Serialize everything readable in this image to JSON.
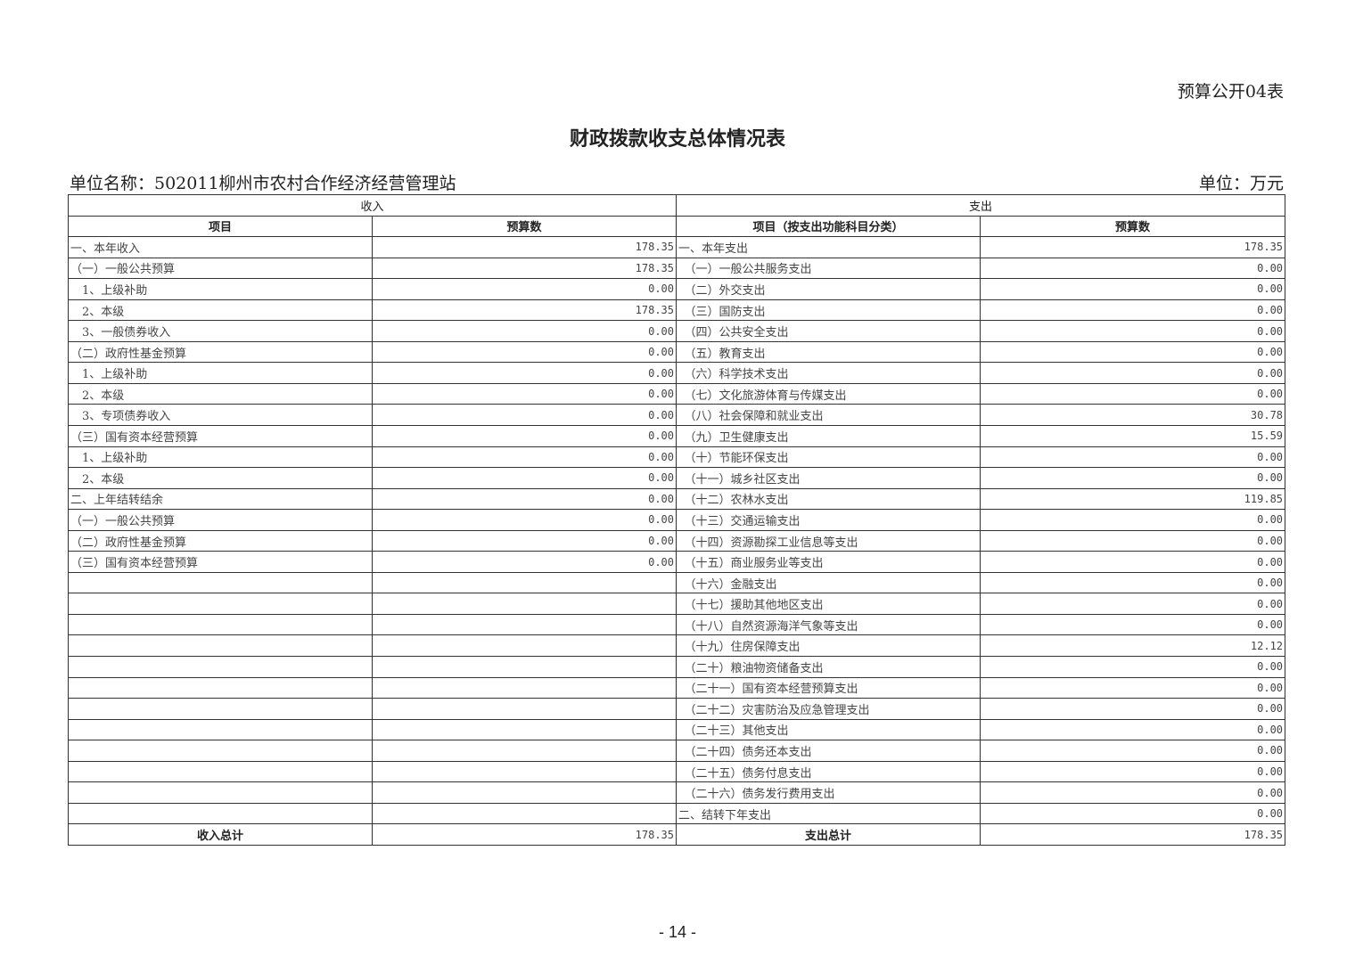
{
  "form_code": "预算公开04表",
  "title": "财政拨款收支总体情况表",
  "unit_name": "单位名称：502011柳州市农村合作经济经营管理站",
  "unit": "单位：万元",
  "headers": {
    "income": "收入",
    "expense": "支出",
    "item": "项目",
    "budget": "预算数",
    "expense_item": "项目（按支出功能科目分类）"
  },
  "income_rows": [
    {
      "label": "一、本年收入",
      "value": "178.35"
    },
    {
      "label": "（一）一般公共预算",
      "value": "178.35"
    },
    {
      "label": "　1、上级补助",
      "value": "0.00"
    },
    {
      "label": "　2、本级",
      "value": "178.35"
    },
    {
      "label": "　3、一般债券收入",
      "value": "0.00"
    },
    {
      "label": "（二）政府性基金预算",
      "value": "0.00"
    },
    {
      "label": "　1、上级补助",
      "value": "0.00"
    },
    {
      "label": "　2、本级",
      "value": "0.00"
    },
    {
      "label": "　3、专项债券收入",
      "value": "0.00"
    },
    {
      "label": "（三）国有资本经营预算",
      "value": "0.00"
    },
    {
      "label": "　1、上级补助",
      "value": "0.00"
    },
    {
      "label": "　2、本级",
      "value": "0.00"
    },
    {
      "label": "二、上年结转结余",
      "value": "0.00"
    },
    {
      "label": "（一）一般公共预算",
      "value": "0.00"
    },
    {
      "label": "（二）政府性基金预算",
      "value": "0.00"
    },
    {
      "label": "（三）国有资本经营预算",
      "value": "0.00"
    }
  ],
  "expense_rows": [
    {
      "label": "一、本年支出",
      "value": "178.35"
    },
    {
      "label": "　（一）一般公共服务支出",
      "value": "0.00"
    },
    {
      "label": "　（二）外交支出",
      "value": "0.00"
    },
    {
      "label": "　（三）国防支出",
      "value": "0.00"
    },
    {
      "label": "　（四）公共安全支出",
      "value": "0.00"
    },
    {
      "label": "　（五）教育支出",
      "value": "0.00"
    },
    {
      "label": "　（六）科学技术支出",
      "value": "0.00"
    },
    {
      "label": "　（七）文化旅游体育与传媒支出",
      "value": "0.00"
    },
    {
      "label": "　（八）社会保障和就业支出",
      "value": "30.78"
    },
    {
      "label": "　（九）卫生健康支出",
      "value": "15.59"
    },
    {
      "label": "　（十）节能环保支出",
      "value": "0.00"
    },
    {
      "label": "　（十一）城乡社区支出",
      "value": "0.00"
    },
    {
      "label": "　（十二）农林水支出",
      "value": "119.85"
    },
    {
      "label": "　（十三）交通运输支出",
      "value": "0.00"
    },
    {
      "label": "　（十四）资源勘探工业信息等支出",
      "value": "0.00"
    },
    {
      "label": "　（十五）商业服务业等支出",
      "value": "0.00"
    },
    {
      "label": "　（十六）金融支出",
      "value": "0.00"
    },
    {
      "label": "　（十七）援助其他地区支出",
      "value": "0.00"
    },
    {
      "label": "　（十八）自然资源海洋气象等支出",
      "value": "0.00"
    },
    {
      "label": "　（十九）住房保障支出",
      "value": "12.12"
    },
    {
      "label": "　（二十）粮油物资储备支出",
      "value": "0.00"
    },
    {
      "label": "　（二十一）国有资本经营预算支出",
      "value": "0.00"
    },
    {
      "label": "　（二十二）灾害防治及应急管理支出",
      "value": "0.00"
    },
    {
      "label": "　（二十三）其他支出",
      "value": "0.00"
    },
    {
      "label": "　（二十四）债务还本支出",
      "value": "0.00"
    },
    {
      "label": "　（二十五）债务付息支出",
      "value": "0.00"
    },
    {
      "label": "　（二十六）债务发行费用支出",
      "value": "0.00"
    },
    {
      "label": "二、结转下年支出",
      "value": "0.00"
    }
  ],
  "totals": {
    "income_label": "收入总计",
    "income_value": "178.35",
    "expense_label": "支出总计",
    "expense_value": "178.35"
  },
  "page_number": "- 14 -"
}
